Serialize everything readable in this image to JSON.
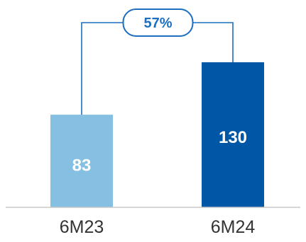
{
  "chart_data": {
    "type": "bar",
    "categories": [
      "6M23",
      "6M24"
    ],
    "values": [
      83,
      130
    ],
    "data_labels": [
      "83",
      "130"
    ],
    "growth_label": "57%",
    "grid": false,
    "legend": "none",
    "colors": {
      "bar_prior": "#85c0e3",
      "bar_current": "#0057a6",
      "connector": "#1a6fbf",
      "baseline": "#c8c8c8",
      "tick_text": "#333333"
    }
  }
}
